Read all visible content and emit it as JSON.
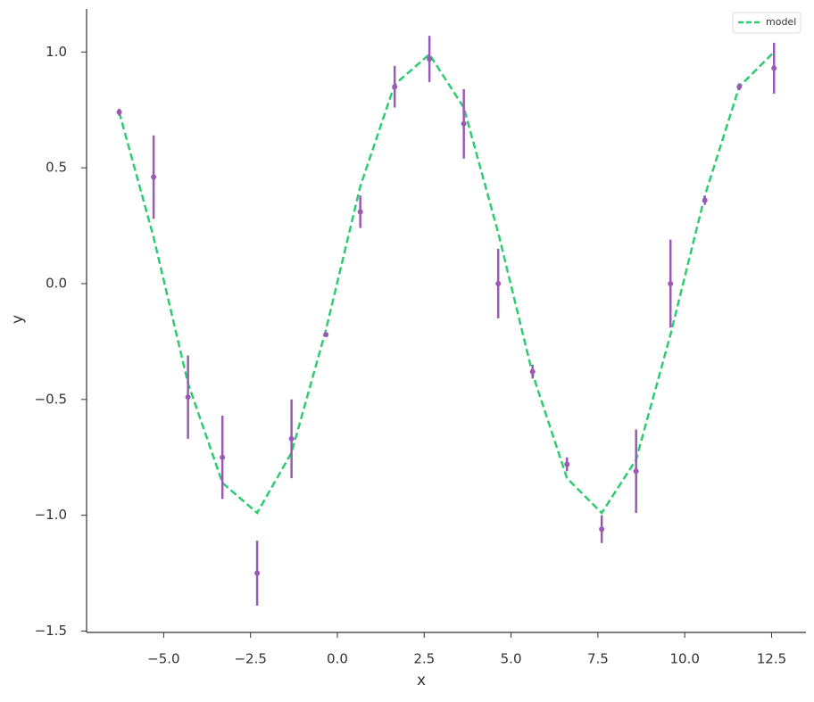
{
  "chart_data": {
    "type": "errorbar",
    "x_label": "x",
    "y_label": "y",
    "x": [
      -6.28,
      -5.29,
      -4.3,
      -3.31,
      -2.31,
      -1.32,
      -0.33,
      0.66,
      1.65,
      2.65,
      3.64,
      4.63,
      5.62,
      6.61,
      7.61,
      8.6,
      9.59,
      10.58,
      11.57,
      12.57
    ],
    "values": [
      0.74,
      0.46,
      -0.49,
      -0.75,
      -1.25,
      -0.67,
      -0.22,
      0.31,
      0.85,
      0.97,
      0.69,
      0.0,
      -0.38,
      -0.78,
      -1.06,
      -0.81,
      0.0,
      0.36,
      0.85,
      0.93
    ],
    "errors": [
      0.015,
      0.18,
      0.18,
      0.18,
      0.14,
      0.17,
      0.01,
      0.07,
      0.09,
      0.1,
      0.15,
      0.15,
      0.03,
      0.03,
      0.06,
      0.18,
      0.19,
      0.02,
      0.015,
      0.11
    ],
    "color": "#9b59b6",
    "model": {
      "name": "model",
      "color": "#2ecc71",
      "values": [
        0.74,
        0.2,
        -0.43,
        -0.86,
        -0.99,
        -0.73,
        -0.2,
        0.42,
        0.86,
        0.99,
        0.76,
        0.22,
        -0.39,
        -0.84,
        -0.99,
        -0.76,
        -0.22,
        0.38,
        0.85,
        1.0
      ]
    },
    "legend": "upper right",
    "xlim": [
      -7.22,
      13.49
    ],
    "ylim": [
      -1.506,
      1.186
    ],
    "xticks": [
      {
        "value": -5,
        "label": "−5.0"
      },
      {
        "value": -2.5,
        "label": "−2.5"
      },
      {
        "value": 0,
        "label": "0.0"
      },
      2.5,
      {
        "value": 5,
        "label": "5.0"
      },
      7.5,
      {
        "value": 10,
        "label": "10.0"
      },
      12.5
    ],
    "yticks": [
      {
        "value": -1.5,
        "label": "−1.5"
      },
      {
        "value": -1,
        "label": "−1.0"
      },
      {
        "value": -0.5,
        "label": "−0.5"
      },
      {
        "value": 0,
        "label": "0.0"
      },
      0.5,
      {
        "value": 1,
        "label": "1.0"
      }
    ],
    "grid": false
  }
}
